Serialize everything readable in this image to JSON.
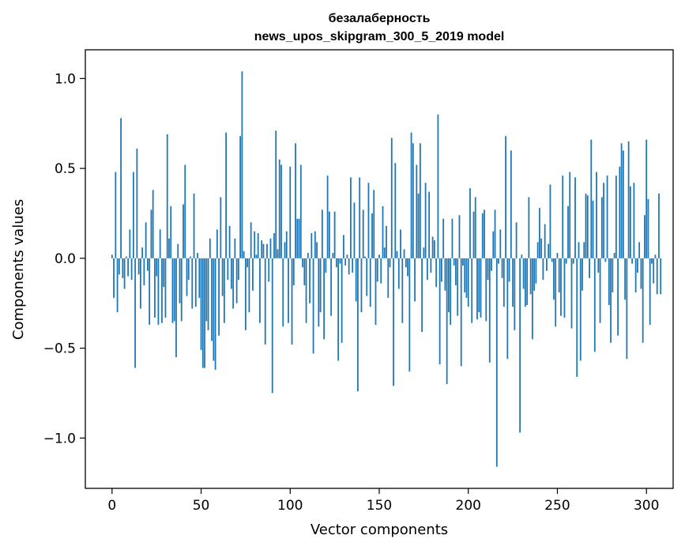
{
  "chart_data": {
    "type": "bar",
    "title": "безалаберность",
    "subtitle": "news_upos_skipgram_300_5_2019 model",
    "xlabel": "Vector components",
    "ylabel": "Components values",
    "xlim": [
      -15,
      315
    ],
    "ylim": [
      -1.28,
      1.16
    ],
    "xticks": [
      0,
      50,
      100,
      150,
      200,
      250,
      300
    ],
    "yticks": [
      -1.0,
      -0.5,
      0.0,
      0.5,
      1.0
    ],
    "xtick_labels": [
      "0",
      "50",
      "100",
      "150",
      "200",
      "250",
      "300"
    ],
    "ytick_labels": [
      "−1.0",
      "−0.5",
      "0.0",
      "0.5",
      "1.0"
    ],
    "grid": false,
    "bar_color": "#1f77b4",
    "values": [
      0.02,
      -0.22,
      0.48,
      -0.3,
      -0.09,
      0.78,
      -0.11,
      -0.17,
      0.01,
      -0.1,
      0.16,
      -0.12,
      0.48,
      -0.61,
      0.61,
      -0.09,
      -0.28,
      0.06,
      -0.15,
      0.2,
      -0.07,
      -0.37,
      0.27,
      0.38,
      -0.33,
      -0.1,
      -0.37,
      0.16,
      -0.36,
      -0.16,
      -0.33,
      0.69,
      0.11,
      0.29,
      -0.36,
      -0.35,
      -0.55,
      0.08,
      -0.25,
      -0.35,
      0.3,
      0.52,
      -0.21,
      -0.12,
      0.01,
      -0.28,
      0.36,
      -0.27,
      0.03,
      -0.22,
      -0.51,
      -0.61,
      -0.61,
      -0.35,
      -0.4,
      0.11,
      -0.46,
      -0.57,
      -0.62,
      0.16,
      -0.43,
      0.34,
      -0.21,
      -0.36,
      0.7,
      -0.12,
      0.18,
      -0.17,
      -0.28,
      0.11,
      -0.25,
      -0.12,
      0.68,
      1.04,
      0.04,
      -0.4,
      -0.05,
      -0.3,
      0.2,
      -0.18,
      0.15,
      0.02,
      0.14,
      -0.36,
      0.1,
      0.08,
      -0.48,
      0.08,
      -0.13,
      0.11,
      -0.75,
      0.14,
      0.71,
      0.05,
      0.55,
      0.52,
      -0.38,
      0.09,
      0.15,
      -0.36,
      0.51,
      -0.48,
      -0.15,
      0.64,
      0.22,
      0.22,
      0.52,
      -0.05,
      -0.15,
      -0.36,
      0.03,
      -0.25,
      0.14,
      -0.53,
      0.15,
      0.09,
      -0.38,
      -0.3,
      0.27,
      -0.45,
      -0.08,
      0.46,
      0.26,
      -0.32,
      0.03,
      0.26,
      -0.05,
      -0.57,
      -0.03,
      -0.47,
      0.13,
      -0.04,
      0.02,
      -0.09,
      0.45,
      -0.08,
      0.31,
      -0.24,
      -0.74,
      0.45,
      -0.3,
      0.27,
      0.01,
      -0.21,
      0.42,
      -0.27,
      0.25,
      0.38,
      -0.37,
      -0.13,
      0.02,
      -0.14,
      0.29,
      0.06,
      0.18,
      -0.22,
      -0.05,
      0.67,
      -0.71,
      0.53,
      0.04,
      -0.17,
      0.16,
      -0.36,
      0.05,
      -0.05,
      -0.1,
      -0.63,
      0.7,
      0.64,
      -0.24,
      0.52,
      0.36,
      0.64,
      -0.41,
      0.06,
      0.42,
      -0.12,
      0.37,
      -0.08,
      0.12,
      0.1,
      -0.16,
      0.8,
      -0.59,
      -0.13,
      0.22,
      -0.18,
      -0.7,
      -0.3,
      -0.37,
      0.22,
      -0.04,
      -0.15,
      -0.32,
      0.24,
      -0.6,
      -0.04,
      -0.19,
      -0.22,
      -0.27,
      0.39,
      -0.36,
      0.26,
      0.34,
      -0.34,
      -0.3,
      -0.33,
      0.25,
      0.27,
      -0.35,
      -0.12,
      -0.58,
      -0.07,
      0.15,
      0.27,
      -1.16,
      -0.03,
      0.16,
      -0.11,
      -0.27,
      0.68,
      -0.56,
      -0.13,
      0.6,
      -0.27,
      -0.4,
      0.2,
      0.0,
      -0.97,
      0.02,
      -0.17,
      -0.27,
      -0.26,
      0.34,
      -0.2,
      -0.45,
      -0.18,
      -0.14,
      0.09,
      0.28,
      0.11,
      -0.12,
      0.19,
      -0.07,
      0.08,
      0.41,
      -0.02,
      -0.23,
      -0.38,
      0.03,
      -0.19,
      -0.32,
      0.46,
      -0.33,
      -0.03,
      0.29,
      0.48,
      -0.39,
      -0.03,
      0.45,
      -0.66,
      0.09,
      -0.57,
      -0.18,
      0.09,
      0.36,
      0.35,
      -0.11,
      0.66,
      0.32,
      -0.52,
      0.48,
      -0.08,
      -0.36,
      0.34,
      0.42,
      -0.02,
      0.46,
      -0.26,
      -0.47,
      -0.19,
      0.03,
      0.46,
      -0.43,
      0.51,
      0.64,
      0.6,
      -0.23,
      -0.56,
      0.65,
      0.4,
      -0.03,
      0.42,
      -0.19,
      -0.08,
      0.09,
      -0.17,
      -0.47,
      0.24,
      0.66,
      0.33,
      -0.37,
      -0.03,
      -0.14,
      0.02,
      -0.2,
      0.36,
      -0.2
    ]
  }
}
